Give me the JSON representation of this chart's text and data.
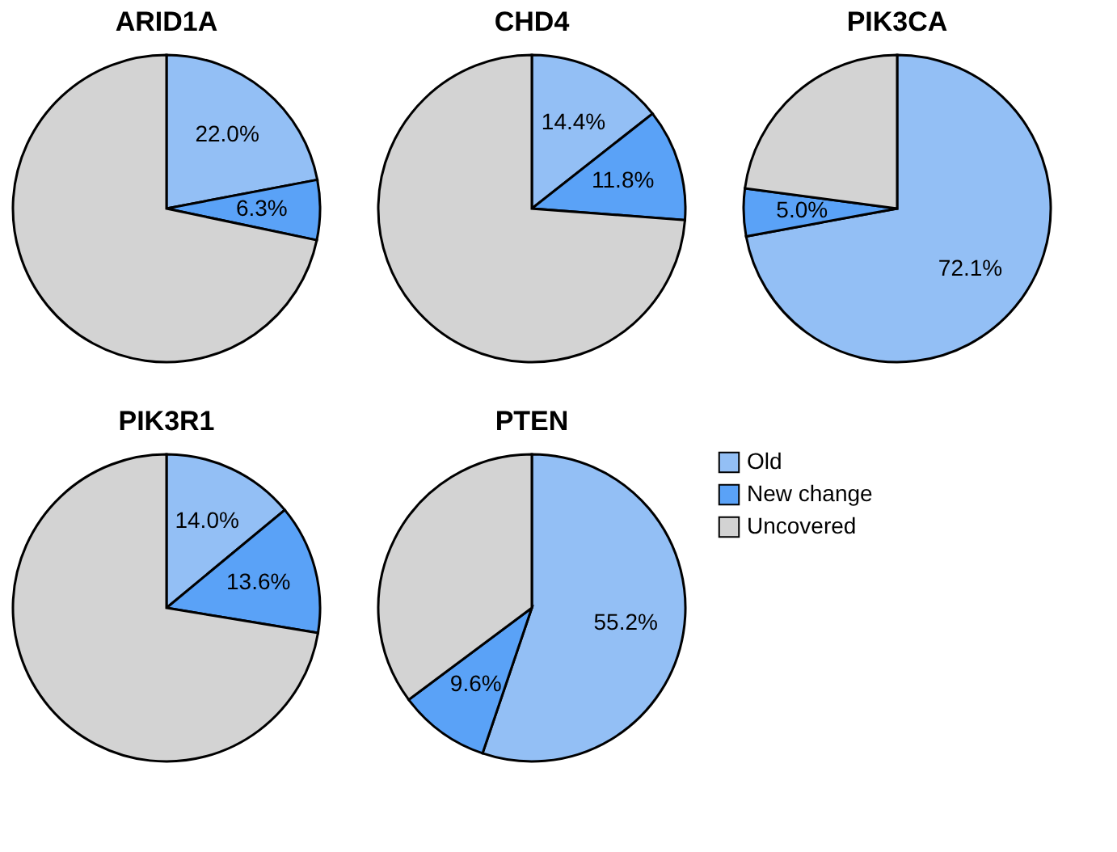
{
  "chart_data": [
    {
      "type": "pie",
      "title": "ARID1A",
      "categories": [
        null,
        null,
        null
      ],
      "values": [
        22.0,
        6.3,
        71.7
      ],
      "colors": [
        "#93bff5",
        "#5aa2f7",
        "#d3d3d3"
      ],
      "value_labels": [
        "22.0%",
        "6.3%",
        null
      ]
    },
    {
      "type": "pie",
      "title": "CHD4",
      "categories": [
        null,
        null,
        null
      ],
      "values": [
        14.4,
        11.8,
        73.8
      ],
      "colors": [
        "#93bff5",
        "#5aa2f7",
        "#d3d3d3"
      ],
      "value_labels": [
        "14.4%",
        "11.8%",
        null
      ]
    },
    {
      "type": "pie",
      "title": "PIK3CA",
      "categories": [
        null,
        null,
        null
      ],
      "values": [
        72.1,
        5.0,
        22.9
      ],
      "colors": [
        "#93bff5",
        "#5aa2f7",
        "#d3d3d3"
      ],
      "value_labels": [
        "72.1%",
        "5.0%",
        null
      ]
    },
    {
      "type": "pie",
      "title": "PIK3R1",
      "categories": [
        null,
        null,
        null
      ],
      "values": [
        14.0,
        13.6,
        72.4
      ],
      "colors": [
        "#93bff5",
        "#5aa2f7",
        "#d3d3d3"
      ],
      "value_labels": [
        "14.0%",
        "13.6%",
        null
      ]
    },
    {
      "type": "pie",
      "title": "PTEN",
      "categories": [
        "Old",
        "New change",
        "Uncovered"
      ],
      "values": [
        55.2,
        9.6,
        35.2
      ],
      "colors": [
        "#93bff5",
        "#5aa2f7",
        "#d3d3d3"
      ],
      "value_labels": [
        "55.2%",
        "9.6%",
        null
      ],
      "legend": "right"
    }
  ]
}
